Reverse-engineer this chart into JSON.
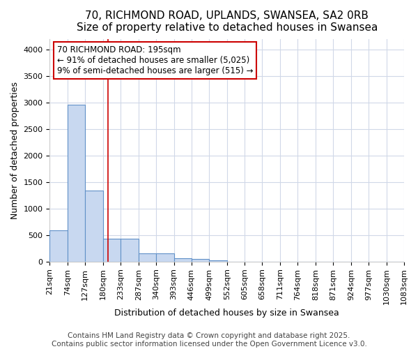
{
  "title_line1": "70, RICHMOND ROAD, UPLANDS, SWANSEA, SA2 0RB",
  "title_line2": "Size of property relative to detached houses in Swansea",
  "xlabel": "Distribution of detached houses by size in Swansea",
  "ylabel": "Number of detached properties",
  "bin_edges": [
    21,
    74,
    127,
    180,
    233,
    287,
    340,
    393,
    446,
    499,
    552,
    605,
    658,
    711,
    764,
    818,
    871,
    924,
    977,
    1030,
    1083
  ],
  "bar_heights": [
    590,
    2960,
    1340,
    430,
    430,
    160,
    160,
    65,
    55,
    30,
    0,
    0,
    0,
    0,
    0,
    0,
    0,
    0,
    0,
    0
  ],
  "bar_color": "#c8d8f0",
  "bar_edge_color": "#6090c8",
  "vline_x": 195,
  "vline_color": "#cc0000",
  "annotation_line1": "70 RICHMOND ROAD: 195sqm",
  "annotation_line2": "← 91% of detached houses are smaller (5,025)",
  "annotation_line3": "9% of semi-detached houses are larger (515) →",
  "annotation_box_edge": "#cc0000",
  "ylim": [
    0,
    4200
  ],
  "yticks": [
    0,
    500,
    1000,
    1500,
    2000,
    2500,
    3000,
    3500,
    4000
  ],
  "background_color": "#ffffff",
  "plot_bg_color": "#ffffff",
  "grid_color": "#d0d8e8",
  "footer_line1": "Contains HM Land Registry data © Crown copyright and database right 2025.",
  "footer_line2": "Contains public sector information licensed under the Open Government Licence v3.0.",
  "title_fontsize": 11,
  "subtitle_fontsize": 10,
  "axis_label_fontsize": 9,
  "tick_fontsize": 8,
  "annotation_fontsize": 8.5,
  "footer_fontsize": 7.5
}
